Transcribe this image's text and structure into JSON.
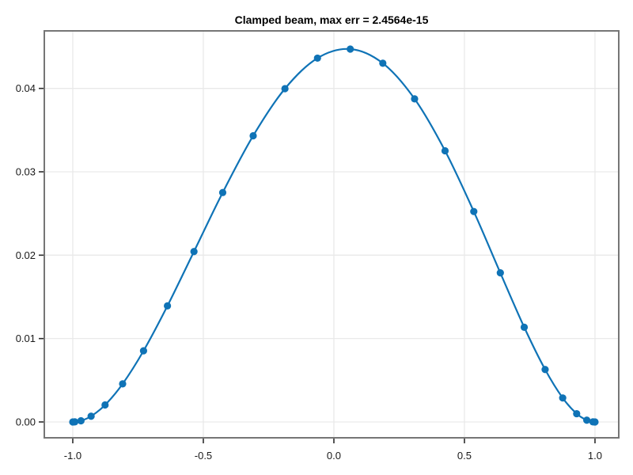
{
  "colors": {
    "series": "#0f73b6",
    "grid": "#e9e9e9",
    "spine": "#767676",
    "tick": "#2b2b2b",
    "background": "#ffffff"
  },
  "chart_data": {
    "type": "line",
    "title": "Clamped beam, max err = 2.4564e-15",
    "xlabel": "",
    "ylabel": "",
    "grid": true,
    "legend": "none",
    "marker": "circle",
    "xlim": [
      -1.109,
      1.091
    ],
    "ylim": [
      -0.0019,
      0.0469
    ],
    "xticks": [
      -1.0,
      -0.5,
      0.0,
      0.5,
      1.0
    ],
    "xtick_labels": [
      "-1.0",
      "-0.5",
      "0.0",
      "0.5",
      "1.0"
    ],
    "yticks": [
      0.0,
      0.01,
      0.02,
      0.03,
      0.04
    ],
    "ytick_labels": [
      "0.00",
      "0.01",
      "0.02",
      "0.03",
      "0.04"
    ],
    "series": [
      {
        "x": [
          -1.0,
          -0.992115,
          -0.968583,
          -0.929776,
          -0.876307,
          -0.809017,
          -0.728969,
          -0.637424,
          -0.535827,
          -0.425779,
          -0.309017,
          -0.187381,
          -0.062791,
          0.062791,
          0.187381,
          0.309017,
          0.425779,
          0.535827,
          0.637424,
          0.728969,
          0.809017,
          0.876307,
          0.929776,
          0.968583,
          0.992115,
          1.0
        ],
        "y": [
          0.0,
          8e-06,
          0.000142,
          0.000687,
          0.002038,
          0.004569,
          0.008531,
          0.013919,
          0.020437,
          0.027512,
          0.034323,
          0.039969,
          0.043632,
          0.044719,
          0.043021,
          0.03875,
          0.032521,
          0.025237,
          0.01788,
          0.011354,
          0.006289,
          0.002878,
          0.00099,
          0.000211,
          1.3e-05,
          0.0
        ]
      }
    ]
  }
}
